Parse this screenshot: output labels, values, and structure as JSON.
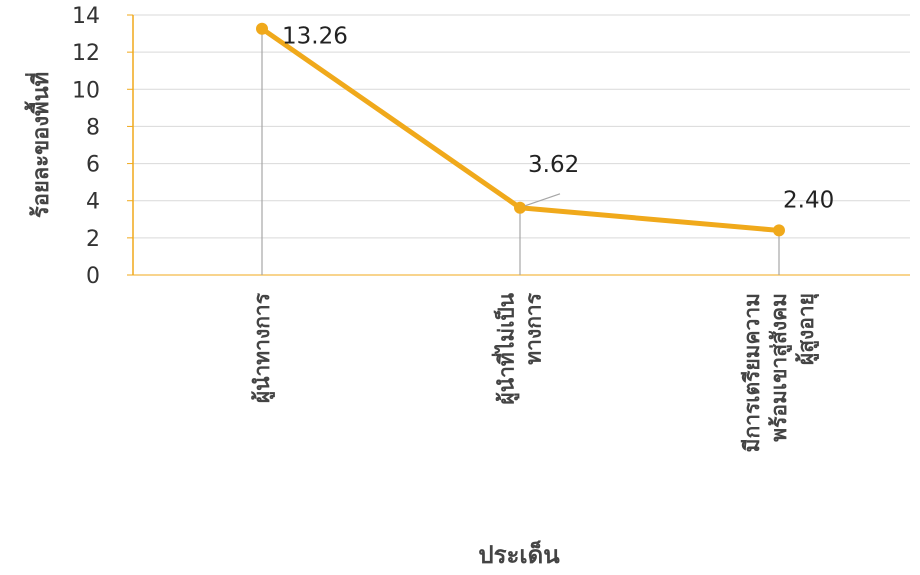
{
  "chart_data": {
    "type": "line",
    "categories": [
      [
        "ผู้นำทางการ"
      ],
      [
        "ผู้นำที่ไม่เป็น",
        "ทางการ"
      ],
      [
        "มีการเตรียมความ",
        "พร้อมเขาสู่สังคม",
        "ผู้สูงอายุ"
      ]
    ],
    "values": [
      13.26,
      3.62,
      2.4
    ],
    "data_labels": [
      "13.26",
      "3.62",
      "2.40"
    ],
    "title": "",
    "xlabel": "ประเด็น",
    "ylabel": "ร้อยละของพื้นที่",
    "ylim": [
      0,
      14
    ],
    "yticks": [
      0,
      2,
      4,
      6,
      8,
      10,
      12,
      14
    ],
    "grid": true,
    "legend": "none",
    "colors": {
      "line": "#F0A91B",
      "axis": "#F0A91B",
      "grid": "#D9D9D9",
      "dropline": "#A6A6A6"
    }
  }
}
